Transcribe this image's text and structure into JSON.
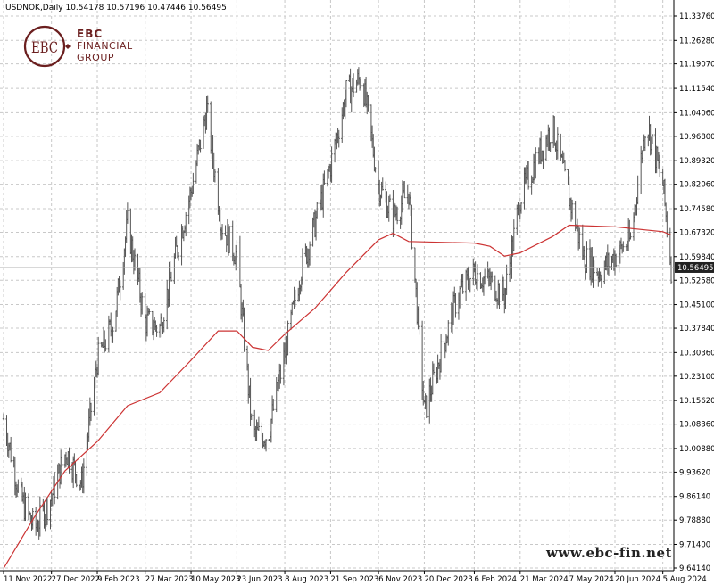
{
  "header": {
    "symbol": "USDNOK,Daily",
    "ohlc": "10.54178 10.57196 10.47446 10.56495"
  },
  "logo": {
    "line1": "EBC",
    "line2": "FINANCIAL",
    "line3": "GROUP",
    "monogram": "EBC"
  },
  "watermark": "www.ebc-fin.net",
  "colors": {
    "bars": "#555555",
    "ma": "#cc3333",
    "grid": "#c8c8c8",
    "price_tag_bg": "#222222",
    "brand": "#6b1f1f"
  },
  "chart_data": {
    "type": "bar",
    "title": "USDNOK,Daily",
    "grid": true,
    "ylim": [
      9.6414,
      11.375
    ],
    "y_ticks": [
      "11.33760",
      "11.26280",
      "11.19070",
      "11.11540",
      "11.04060",
      "10.96800",
      "10.89320",
      "10.82060",
      "10.74580",
      "10.67320",
      "10.59840",
      "10.52580",
      "10.45100",
      "10.37840",
      "10.30360",
      "10.23100",
      "10.15620",
      "10.08360",
      "10.00880",
      "9.93620",
      "9.86140",
      "9.78880",
      "9.71400",
      "9.64140"
    ],
    "x_ticks": [
      "11 Nov 2022",
      "27 Dec 2022",
      "9 Feb 2023",
      "27 Mar 2023",
      "10 May 2023",
      "23 Jun 2023",
      "8 Aug 2023",
      "21 Sep 2023",
      "6 Nov 2023",
      "20 Dec 2023",
      "6 Feb 2024",
      "21 Mar 2024",
      "7 May 2024",
      "20 Jun 2024",
      "5 Aug 2024"
    ],
    "last_price": "10.56495",
    "series": [
      {
        "kind": "price",
        "points": [
          {
            "date": "11 Nov 2022",
            "close": 10.1
          },
          {
            "date": "27 Nov 2022",
            "close": 9.86
          },
          {
            "date": "11 Dec 2022",
            "close": 9.76
          },
          {
            "date": "27 Dec 2022",
            "close": 9.86
          },
          {
            "date": "10 Jan 2023",
            "close": 10.0
          },
          {
            "date": "25 Jan 2023",
            "close": 9.9
          },
          {
            "date": "9 Feb 2023",
            "close": 10.28
          },
          {
            "date": "25 Feb 2023",
            "close": 10.4
          },
          {
            "date": "10 Mar 2023",
            "close": 10.7
          },
          {
            "date": "27 Mar 2023",
            "close": 10.4
          },
          {
            "date": "10 Apr 2023",
            "close": 10.38
          },
          {
            "date": "25 Apr 2023",
            "close": 10.6
          },
          {
            "date": "10 May 2023",
            "close": 10.8
          },
          {
            "date": "25 May 2023",
            "close": 11.05
          },
          {
            "date": "8 Jun 2023",
            "close": 10.7
          },
          {
            "date": "23 Jun 2023",
            "close": 10.6
          },
          {
            "date": "8 Jul 2023",
            "close": 10.05
          },
          {
            "date": "23 Jul 2023",
            "close": 10.05
          },
          {
            "date": "8 Aug 2023",
            "close": 10.3
          },
          {
            "date": "23 Aug 2023",
            "close": 10.55
          },
          {
            "date": "6 Sep 2023",
            "close": 10.7
          },
          {
            "date": "21 Sep 2023",
            "close": 10.88
          },
          {
            "date": "6 Oct 2023",
            "close": 11.1
          },
          {
            "date": "21 Oct 2023",
            "close": 11.15
          },
          {
            "date": "6 Nov 2023",
            "close": 10.82
          },
          {
            "date": "20 Nov 2023",
            "close": 10.72
          },
          {
            "date": "5 Dec 2023",
            "close": 10.8
          },
          {
            "date": "20 Dec 2023",
            "close": 10.12
          },
          {
            "date": "5 Jan 2024",
            "close": 10.3
          },
          {
            "date": "21 Jan 2024",
            "close": 10.48
          },
          {
            "date": "6 Feb 2024",
            "close": 10.55
          },
          {
            "date": "21 Feb 2024",
            "close": 10.52
          },
          {
            "date": "6 Mar 2024",
            "close": 10.48
          },
          {
            "date": "21 Mar 2024",
            "close": 10.78
          },
          {
            "date": "6 Apr 2024",
            "close": 10.9
          },
          {
            "date": "21 Apr 2024",
            "close": 11.0
          },
          {
            "date": "7 May 2024",
            "close": 10.78
          },
          {
            "date": "21 May 2024",
            "close": 10.6
          },
          {
            "date": "5 Jun 2024",
            "close": 10.55
          },
          {
            "date": "20 Jun 2024",
            "close": 10.6
          },
          {
            "date": "5 Jul 2024",
            "close": 10.65
          },
          {
            "date": "20 Jul 2024",
            "close": 11.02
          },
          {
            "date": "5 Aug 2024",
            "close": 10.82
          },
          {
            "date": "13 Aug 2024",
            "close": 10.565
          }
        ]
      },
      {
        "kind": "moving-average",
        "points": [
          {
            "date": "11 Nov 2022",
            "value": 9.64
          },
          {
            "date": "11 Dec 2022",
            "value": 9.8
          },
          {
            "date": "9 Jan 2023",
            "value": 9.94
          },
          {
            "date": "9 Feb 2023",
            "value": 10.03
          },
          {
            "date": "10 Mar 2023",
            "value": 10.14
          },
          {
            "date": "10 Apr 2023",
            "value": 10.18
          },
          {
            "date": "10 May 2023",
            "value": 10.28
          },
          {
            "date": "5 Jun 2023",
            "value": 10.37
          },
          {
            "date": "23 Jun 2023",
            "value": 10.37
          },
          {
            "date": "8 Jul 2023",
            "value": 10.32
          },
          {
            "date": "23 Jul 2023",
            "value": 10.31
          },
          {
            "date": "8 Aug 2023",
            "value": 10.36
          },
          {
            "date": "6 Sep 2023",
            "value": 10.44
          },
          {
            "date": "6 Oct 2023",
            "value": 10.55
          },
          {
            "date": "6 Nov 2023",
            "value": 10.65
          },
          {
            "date": "20 Nov 2023",
            "value": 10.67
          },
          {
            "date": "5 Dec 2023",
            "value": 10.645
          },
          {
            "date": "6 Feb 2024",
            "value": 10.64
          },
          {
            "date": "21 Feb 2024",
            "value": 10.63
          },
          {
            "date": "6 Mar 2024",
            "value": 10.6
          },
          {
            "date": "21 Mar 2024",
            "value": 10.61
          },
          {
            "date": "21 Apr 2024",
            "value": 10.66
          },
          {
            "date": "7 May 2024",
            "value": 10.695
          },
          {
            "date": "20 Jun 2024",
            "value": 10.69
          },
          {
            "date": "5 Aug 2024",
            "value": 10.675
          },
          {
            "date": "13 Aug 2024",
            "value": 10.665
          }
        ]
      }
    ]
  }
}
